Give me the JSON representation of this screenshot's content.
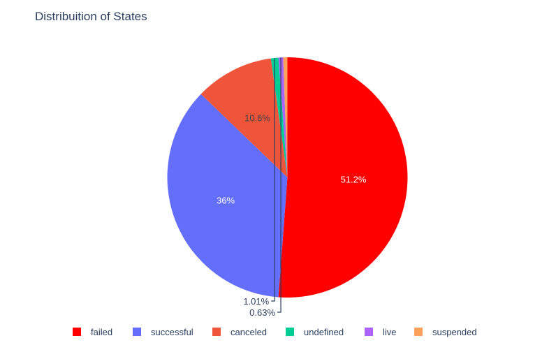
{
  "chart_data": {
    "type": "pie",
    "title": "Distribuition of States",
    "categories": [
      "failed",
      "successful",
      "canceled",
      "undefined",
      "live",
      "suspended"
    ],
    "values": [
      51.2,
      36.0,
      10.6,
      1.01,
      0.63,
      0.56
    ],
    "labels": [
      "51.2%",
      "36%",
      "10.6%",
      "1.01%",
      "0.63%",
      ""
    ],
    "colors": [
      "#ff0000",
      "#636efa",
      "#ef553b",
      "#00cc96",
      "#ab63fa",
      "#ffa15a"
    ],
    "label_text_colors": [
      "#ffffff",
      "#ffffff",
      "#444444",
      "#2a3f5f",
      "#2a3f5f",
      "#2a3f5f"
    ],
    "outside_label_indices": [
      3,
      4
    ],
    "start_angle_deg": 0,
    "direction": "clockwise",
    "legend": {
      "position": "bottom",
      "orientation": "horizontal"
    }
  }
}
